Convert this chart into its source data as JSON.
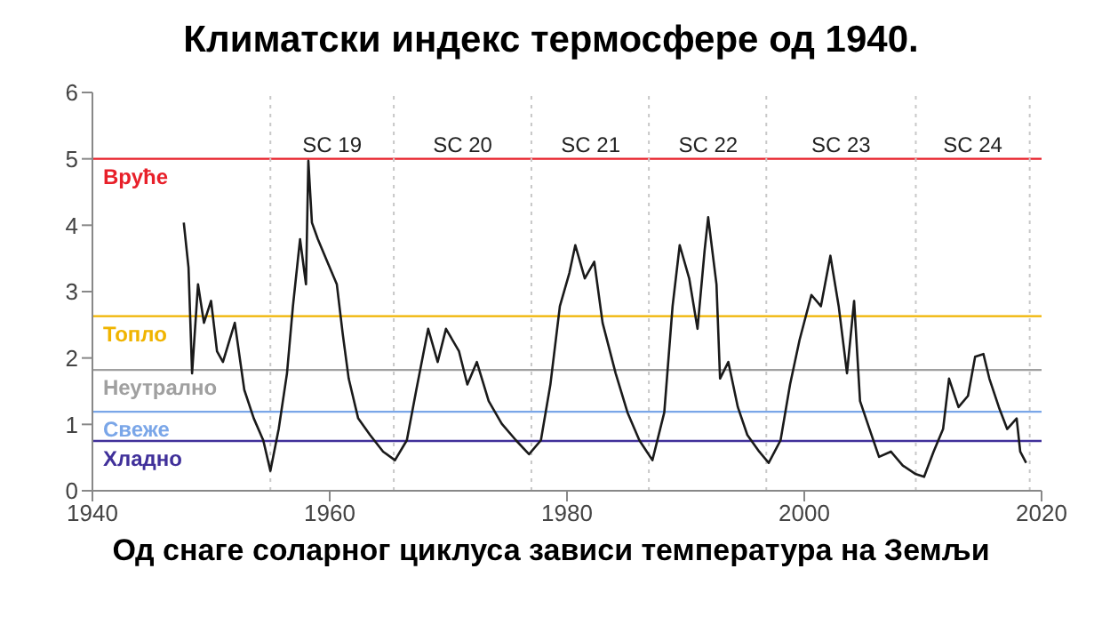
{
  "chart_data": {
    "type": "line",
    "title": "Климатски индекс термосфере од 1940.",
    "xlabel": "Од снаге соларног циклуса зависи температура на Земљи",
    "xlim": [
      1940,
      2020
    ],
    "xticks": [
      1940,
      1960,
      1980,
      2000,
      2020
    ],
    "ylim": [
      0,
      6
    ],
    "yticks": [
      0,
      1,
      2,
      3,
      4,
      5,
      6
    ],
    "grid": false,
    "legend": false,
    "marker": "none",
    "line_style": "solid",
    "series": [
      {
        "color": "#1a1a1a",
        "x": [
          1947.7,
          1948.1,
          1948.4,
          1948.9,
          1949.4,
          1950.0,
          1950.5,
          1951.0,
          1952.0,
          1952.8,
          1953.6,
          1954.4,
          1955.0,
          1955.7,
          1956.4,
          1956.9,
          1957.5,
          1958.0,
          1958.2,
          1958.5,
          1959.0,
          1959.8,
          1960.6,
          1961.1,
          1961.6,
          1962.4,
          1963.4,
          1964.5,
          1965.5,
          1966.5,
          1967.3,
          1968.3,
          1969.1,
          1969.8,
          1970.9,
          1971.6,
          1972.4,
          1973.4,
          1974.5,
          1975.7,
          1976.8,
          1977.8,
          1978.6,
          1979.4,
          1980.2,
          1980.7,
          1981.5,
          1982.3,
          1983.0,
          1984.1,
          1985.1,
          1986.1,
          1987.2,
          1988.2,
          1988.9,
          1989.5,
          1990.3,
          1991.0,
          1991.6,
          1991.9,
          1992.6,
          1992.9,
          1993.6,
          1994.4,
          1995.2,
          1996.2,
          1997.0,
          1998.0,
          1998.8,
          1999.6,
          2000.6,
          2001.4,
          2002.2,
          2002.9,
          2003.6,
          2004.2,
          2004.7,
          2005.5,
          2006.3,
          2007.3,
          2008.3,
          2009.4,
          2010.1,
          2010.9,
          2011.7,
          2012.2,
          2013.0,
          2013.8,
          2014.4,
          2015.1,
          2015.6,
          2016.4,
          2017.1,
          2017.9,
          2018.2,
          2018.7
        ],
        "values": [
          4.04,
          3.36,
          1.77,
          3.11,
          2.53,
          2.86,
          2.1,
          1.94,
          2.53,
          1.52,
          1.09,
          0.76,
          0.3,
          0.93,
          1.77,
          2.78,
          3.79,
          3.11,
          4.97,
          4.04,
          3.79,
          3.45,
          3.11,
          2.36,
          1.69,
          1.09,
          0.84,
          0.59,
          0.46,
          0.76,
          1.52,
          2.44,
          1.94,
          2.44,
          2.1,
          1.6,
          1.94,
          1.35,
          1.01,
          0.76,
          0.55,
          0.76,
          1.6,
          2.78,
          3.28,
          3.7,
          3.2,
          3.45,
          2.53,
          1.77,
          1.18,
          0.76,
          0.46,
          1.18,
          2.78,
          3.7,
          3.2,
          2.44,
          3.62,
          4.12,
          3.11,
          1.69,
          1.94,
          1.26,
          0.84,
          0.59,
          0.42,
          0.76,
          1.6,
          2.27,
          2.95,
          2.78,
          3.54,
          2.78,
          1.77,
          2.86,
          1.35,
          0.93,
          0.51,
          0.59,
          0.38,
          0.25,
          0.21,
          0.59,
          0.93,
          1.69,
          1.26,
          1.43,
          2.02,
          2.06,
          1.69,
          1.26,
          0.93,
          1.09,
          0.59,
          0.42
        ]
      }
    ],
    "ref_lines": [
      {
        "axis": "y",
        "value": 5,
        "label": "Вруће",
        "color": "#e8202a"
      },
      {
        "axis": "y",
        "value": 2.63,
        "label": "Топло",
        "color": "#f0b400"
      },
      {
        "axis": "y",
        "value": 1.82,
        "label": "Неутрално",
        "color": "#a0a0a0"
      },
      {
        "axis": "y",
        "value": 1.19,
        "label": "Свеже",
        "color": "#7aa6e8"
      },
      {
        "axis": "y",
        "value": 0.75,
        "label": "Хладно",
        "color": "#40309a"
      },
      {
        "axis": "x",
        "value": 1955.0,
        "color": "#c8c8c8",
        "line_style": "dotted"
      },
      {
        "axis": "x",
        "value": 1965.4,
        "color": "#c8c8c8",
        "line_style": "dotted"
      },
      {
        "axis": "x",
        "value": 1977.0,
        "color": "#c8c8c8",
        "line_style": "dotted"
      },
      {
        "axis": "x",
        "value": 1986.9,
        "color": "#c8c8c8",
        "line_style": "dotted"
      },
      {
        "axis": "x",
        "value": 1996.8,
        "color": "#c8c8c8",
        "line_style": "dotted"
      },
      {
        "axis": "x",
        "value": 2009.4,
        "color": "#c8c8c8",
        "line_style": "dotted"
      },
      {
        "axis": "x",
        "value": 2019.0,
        "color": "#c8c8c8",
        "line_style": "dotted"
      }
    ],
    "annotations": [
      {
        "text": "SC 19",
        "x": 1960.2,
        "y": 5
      },
      {
        "text": "SC 20",
        "x": 1971.2,
        "y": 5
      },
      {
        "text": "SC 21",
        "x": 1982.0,
        "y": 5
      },
      {
        "text": "SC 22",
        "x": 1991.9,
        "y": 5
      },
      {
        "text": "SC 23",
        "x": 2003.1,
        "y": 5
      },
      {
        "text": "SC 24",
        "x": 2014.2,
        "y": 5
      }
    ]
  }
}
